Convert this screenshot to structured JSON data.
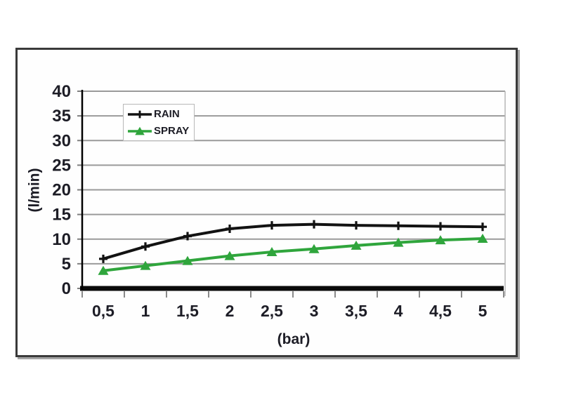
{
  "chart_data": {
    "type": "line",
    "title": "",
    "xlabel": "(bar)",
    "ylabel": "(l/min)",
    "x": [
      0.5,
      1,
      1.5,
      2,
      2.5,
      3,
      3.5,
      4,
      4.5,
      5
    ],
    "x_tick_labels": [
      "0,5",
      "1",
      "1,5",
      "2",
      "2,5",
      "3",
      "3,5",
      "4",
      "4,5",
      "5"
    ],
    "y_ticks": [
      0,
      5,
      10,
      15,
      20,
      25,
      30,
      35,
      40
    ],
    "ylim": [
      0,
      40
    ],
    "grid": true,
    "legend_position": "inside-top-left",
    "series": [
      {
        "name": "RAIN",
        "color": "#121212",
        "marker": "plus",
        "values": [
          6,
          8.5,
          10.6,
          12.1,
          12.8,
          13,
          12.8,
          12.7,
          12.6,
          12.5
        ]
      },
      {
        "name": "SPRAY",
        "color": "#2fa53c",
        "marker": "triangle-up",
        "values": [
          3.6,
          4.6,
          5.6,
          6.6,
          7.4,
          8,
          8.7,
          9.3,
          9.8,
          10.1
        ]
      }
    ],
    "colors": {
      "gridline": "#9a9a9a",
      "axis": "#0a0a0a",
      "text": "#1d1d26"
    }
  }
}
